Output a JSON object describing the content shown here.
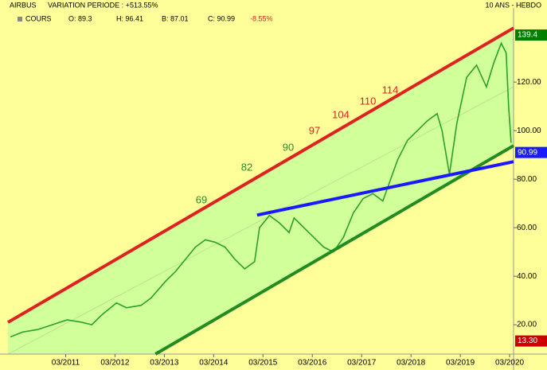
{
  "chart_data": {
    "type": "line",
    "title": "AIRBUS",
    "subtitle": "VARIATION PERIODE : +513.55%",
    "period": "10 ANS - HEBDO",
    "legend_label": "COURS",
    "ohlc": [
      "O: 89.3",
      "H: 96.41",
      "B: 87.01",
      "C: 90.99"
    ],
    "change": "-8.55%",
    "xlim": [
      2010.0,
      2020.25
    ],
    "ylim": [
      7.9,
      144
    ],
    "xticks": [
      {
        "value": 2011.17,
        "label": "03/2011"
      },
      {
        "value": 2012.17,
        "label": "03/2012"
      },
      {
        "value": 2013.17,
        "label": "03/2013"
      },
      {
        "value": 2014.17,
        "label": "03/2014"
      },
      {
        "value": 2015.17,
        "label": "03/2015"
      },
      {
        "value": 2016.17,
        "label": "03/2016"
      },
      {
        "value": 2017.17,
        "label": "03/2017"
      },
      {
        "value": 2018.17,
        "label": "03/2018"
      },
      {
        "value": 2019.17,
        "label": "03/2019"
      },
      {
        "value": 2020.17,
        "label": "03/2020"
      }
    ],
    "yticks": [
      {
        "value": 20,
        "label": "20.00"
      },
      {
        "value": 40,
        "label": "40.00"
      },
      {
        "value": 60,
        "label": "60.00"
      },
      {
        "value": 80,
        "label": "80.00"
      },
      {
        "value": 100,
        "label": "100.00"
      },
      {
        "value": 120,
        "label": "120.00"
      }
    ],
    "series": [
      {
        "color": "#2ca02c",
        "x": [
          2010.05,
          2010.3,
          2010.6,
          2010.9,
          2011.2,
          2011.5,
          2011.7,
          2011.9,
          2012.2,
          2012.4,
          2012.7,
          2012.9,
          2013.2,
          2013.4,
          2013.6,
          2013.8,
          2014.0,
          2014.2,
          2014.4,
          2014.6,
          2014.8,
          2015.0,
          2015.1,
          2015.3,
          2015.5,
          2015.7,
          2015.8,
          2016.0,
          2016.2,
          2016.4,
          2016.6,
          2016.8,
          2017.0,
          2017.2,
          2017.4,
          2017.6,
          2017.9,
          2018.1,
          2018.3,
          2018.5,
          2018.7,
          2018.8,
          2018.95,
          2019.1,
          2019.3,
          2019.5,
          2019.7,
          2019.85,
          2020.0,
          2020.1,
          2020.15,
          2020.2
        ],
        "values": [
          15,
          17,
          18,
          20,
          22,
          21,
          20,
          24,
          29,
          27,
          28,
          31,
          38,
          42,
          47,
          52,
          55,
          54,
          52,
          47,
          43,
          46,
          60,
          65,
          62,
          58,
          64,
          60,
          56,
          52,
          50,
          56,
          66,
          72,
          74,
          71,
          88,
          96,
          100,
          104,
          107,
          100,
          82,
          103,
          122,
          127,
          118,
          128,
          136,
          132,
          110,
          95
        ]
      }
    ],
    "trend_lines": [
      {
        "color": "#dd2222",
        "x": [
          2010.0,
          2020.25
        ],
        "values": [
          21,
          142.3
        ]
      },
      {
        "color": "#228b22",
        "x": [
          2012.99,
          2020.25
        ],
        "values": [
          7.9,
          93.8
        ]
      },
      {
        "color": "#1a1aff",
        "x": [
          2015.05,
          2020.25
        ],
        "values": [
          65.2,
          87.2
        ]
      }
    ],
    "annotations": [
      {
        "text": "69",
        "color": "#2e8b2e"
      },
      {
        "text": "82",
        "color": "#2e8b2e"
      },
      {
        "text": "90",
        "color": "#2e8b2e"
      },
      {
        "text": "97",
        "color": "#dd2222"
      },
      {
        "text": "104",
        "color": "#dd2222"
      },
      {
        "text": "110",
        "color": "#dd2222"
      },
      {
        "text": "114",
        "color": "#dd2222"
      }
    ],
    "price_labels": [
      {
        "value": 139.4,
        "label": "139.4",
        "color": "#008000"
      },
      {
        "value": 90.99,
        "label": "90.99",
        "color": "#1a1aff"
      },
      {
        "value": 13.3,
        "label": "13.30",
        "color": "#cc0000"
      }
    ]
  }
}
